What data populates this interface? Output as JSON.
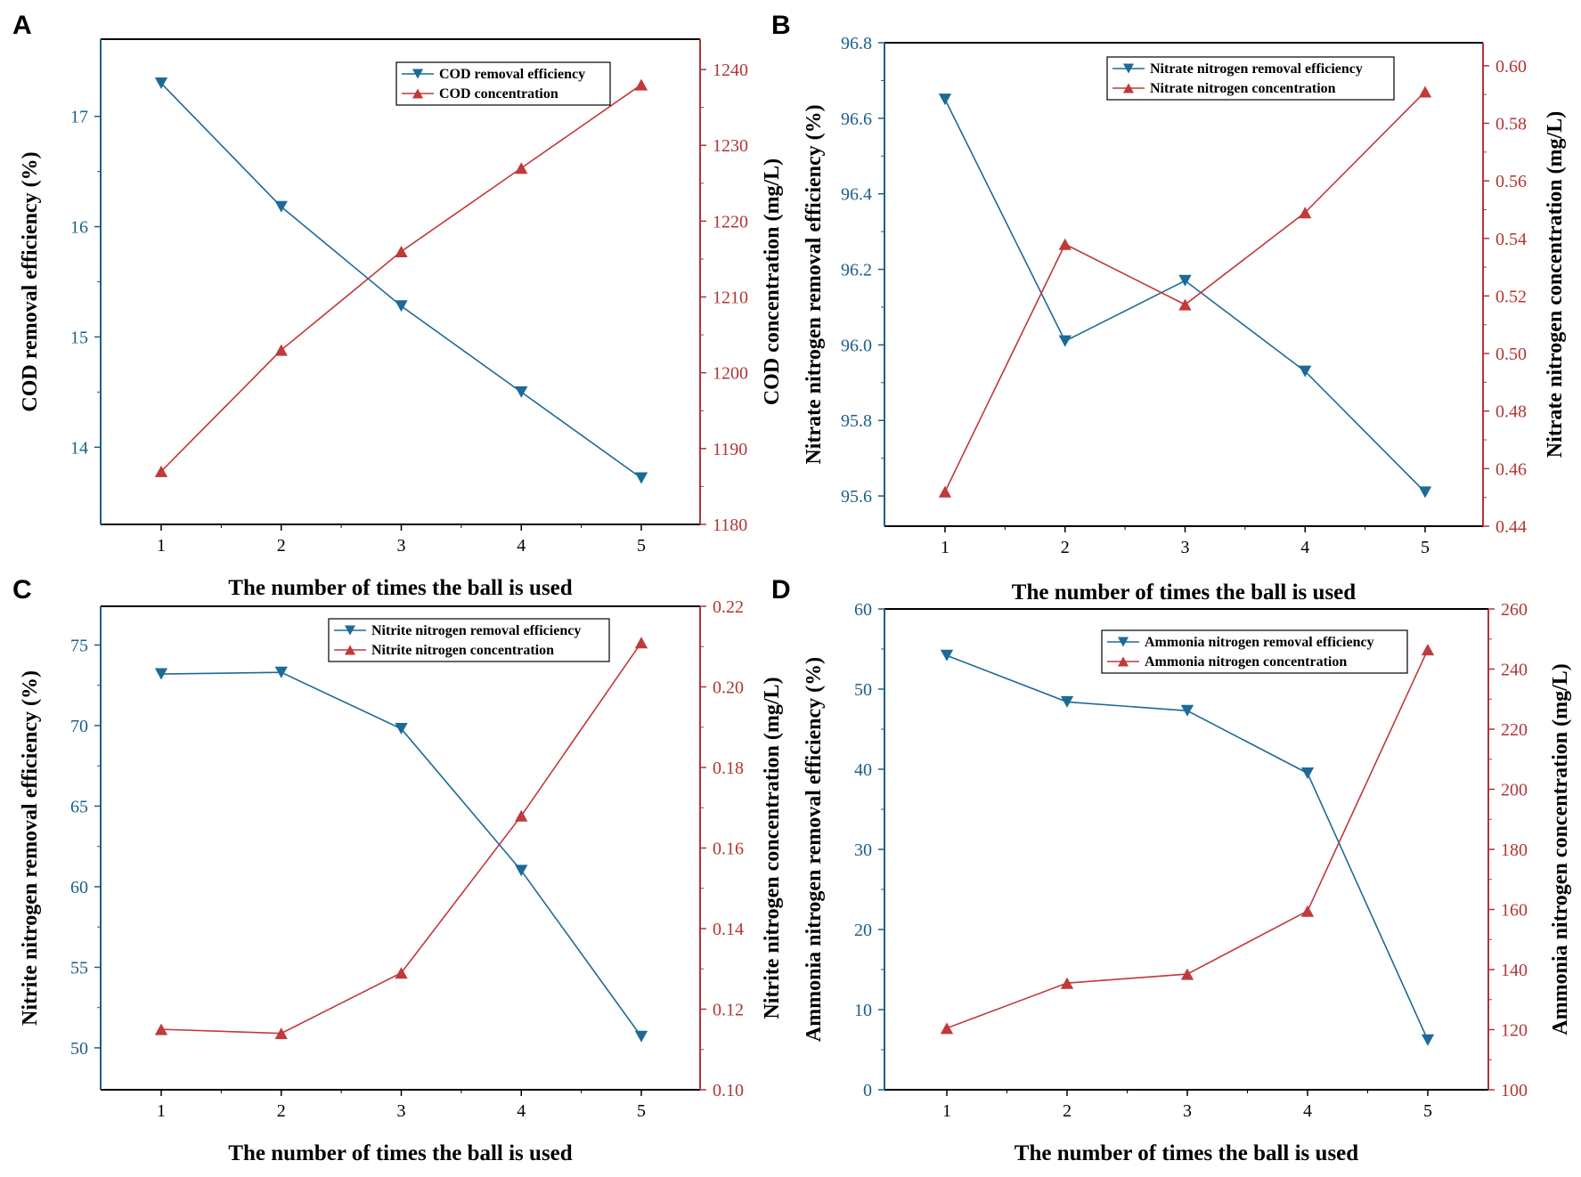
{
  "figure": {
    "panels": [
      "A",
      "B",
      "C",
      "D"
    ]
  },
  "colors": {
    "left_series": "#1d6a96",
    "right_series": "#c0393b",
    "left_axis": "#1a5f8a",
    "right_axis": "#b23434"
  },
  "chart_data": [
    {
      "panel": "A",
      "type": "line",
      "xlabel": "The number of times the ball is used",
      "x": [
        1,
        2,
        3,
        4,
        5
      ],
      "x_ticks": [
        "1",
        "2",
        "3",
        "4",
        "5"
      ],
      "ylabel_left": "COD removal efficiency (%)",
      "ylim_left": [
        13.3,
        17.7
      ],
      "yticks_left": [
        "14",
        "15",
        "16",
        "17"
      ],
      "ylabel_right": "COD concentration (mg/L)",
      "ylim_right": [
        1180,
        1244
      ],
      "yticks_right": [
        "1180",
        "1190",
        "1200",
        "1210",
        "1220",
        "1230",
        "1240"
      ],
      "series": [
        {
          "name": "COD removal efficiency",
          "axis": "left",
          "marker": "triangle-down",
          "values": [
            17.3,
            16.18,
            15.28,
            14.5,
            13.72
          ]
        },
        {
          "name": "COD concentration",
          "axis": "right",
          "marker": "triangle-up",
          "values": [
            1187,
            1203,
            1216,
            1227,
            1238
          ]
        }
      ],
      "legend": "top-right"
    },
    {
      "panel": "B",
      "type": "line",
      "xlabel": "The number of times the ball is used",
      "x": [
        1,
        2,
        3,
        4,
        5
      ],
      "x_ticks": [
        "1",
        "2",
        "3",
        "4",
        "5"
      ],
      "ylabel_left": "Nitrate nitrogen removal efficiency (%)",
      "ylim_left": [
        95.52,
        96.8
      ],
      "yticks_left": [
        "95.6",
        "95.8",
        "96.0",
        "96.2",
        "96.4",
        "96.6",
        "96.8"
      ],
      "ylabel_right": "Nitrate nitrogen concentration (mg/L)",
      "ylim_right": [
        0.44,
        0.608
      ],
      "yticks_right": [
        "0.44",
        "0.46",
        "0.48",
        "0.50",
        "0.52",
        "0.54",
        "0.56",
        "0.58",
        "0.60"
      ],
      "series": [
        {
          "name": "Nitrate nitrogen removal efficiency",
          "axis": "left",
          "marker": "triangle-down",
          "values": [
            96.65,
            96.01,
            96.17,
            95.93,
            95.61
          ]
        },
        {
          "name": "Nitrate nitrogen concentration",
          "axis": "right",
          "marker": "triangle-up",
          "values": [
            0.452,
            0.538,
            0.517,
            0.549,
            0.591
          ]
        }
      ],
      "legend": "top-right"
    },
    {
      "panel": "C",
      "type": "line",
      "xlabel": "The number of times the ball is used",
      "x": [
        1,
        2,
        3,
        4,
        5
      ],
      "x_ticks": [
        "1",
        "2",
        "3",
        "4",
        "5"
      ],
      "ylabel_left": "Nitrite nitrogen removal efficiency (%)",
      "ylim_left": [
        47.4,
        77.4
      ],
      "yticks_left": [
        "50",
        "55",
        "60",
        "65",
        "70",
        "75"
      ],
      "ylabel_right": "Nitrite nitrogen concentration (mg/L)",
      "ylim_right": [
        0.1,
        0.22
      ],
      "yticks_right": [
        "0.10",
        "0.12",
        "0.14",
        "0.16",
        "0.18",
        "0.20",
        "0.22"
      ],
      "series": [
        {
          "name": "Nitrite nitrogen removal efficiency",
          "axis": "left",
          "marker": "triangle-down",
          "values": [
            73.2,
            73.3,
            69.8,
            61.0,
            50.7
          ]
        },
        {
          "name": "Nitrite nitrogen concentration",
          "axis": "right",
          "marker": "triangle-up",
          "values": [
            0.115,
            0.114,
            0.129,
            0.168,
            0.211
          ]
        }
      ],
      "legend": "top-right"
    },
    {
      "panel": "D",
      "type": "line",
      "xlabel": "The number of times the ball is used",
      "x": [
        1,
        2,
        3,
        4,
        5
      ],
      "x_ticks": [
        "1",
        "2",
        "3",
        "4",
        "5"
      ],
      "ylabel_left": "Ammonia nitrogen removal efficiency (%)",
      "ylim_left": [
        0,
        60
      ],
      "yticks_left": [
        "0",
        "10",
        "20",
        "30",
        "40",
        "50",
        "60"
      ],
      "ylabel_right": "Ammonia nitrogen concentration (mg/L)",
      "ylim_right": [
        100,
        260
      ],
      "yticks_right": [
        "100",
        "120",
        "140",
        "160",
        "180",
        "200",
        "220",
        "240",
        "260"
      ],
      "series": [
        {
          "name": "Ammonia nitrogen removal efficiency",
          "axis": "left",
          "marker": "triangle-down",
          "values": [
            54.2,
            48.4,
            47.3,
            39.5,
            6.2
          ]
        },
        {
          "name": "Ammonia nitrogen concentration",
          "axis": "right",
          "marker": "triangle-up",
          "values": [
            120.5,
            135.5,
            138.5,
            159.5,
            246.5
          ]
        }
      ],
      "legend": "top-right"
    }
  ]
}
